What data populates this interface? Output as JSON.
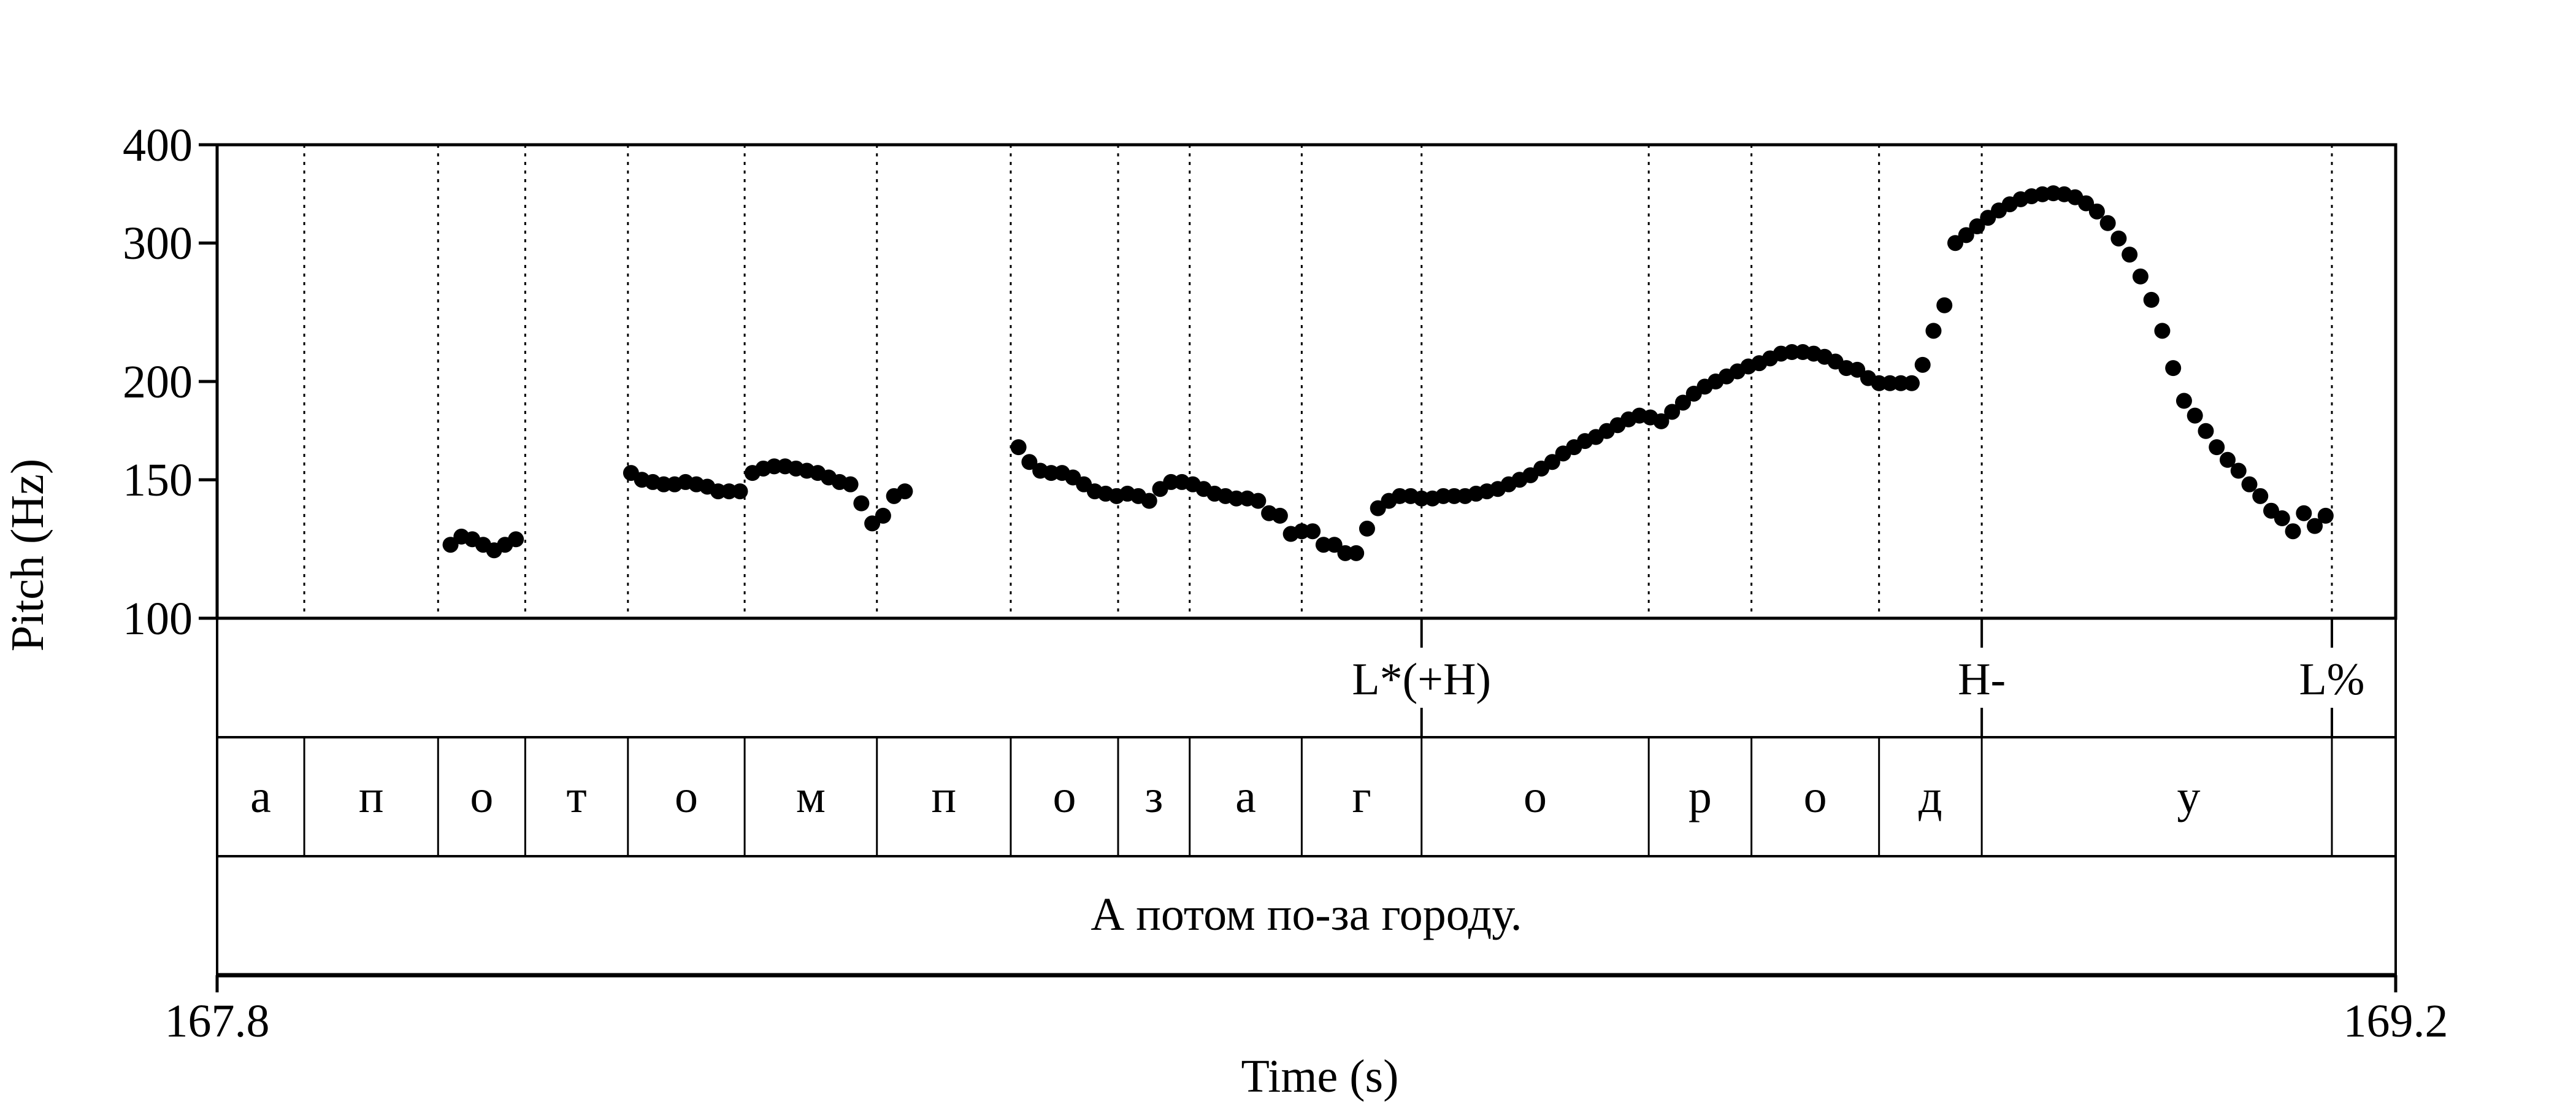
{
  "chart_data": {
    "type": "scatter",
    "title": "",
    "xlabel": "Time (s)",
    "ylabel": "Pitch (Hz)",
    "xlim": [
      167.8,
      169.2
    ],
    "ylim": [
      100,
      400
    ],
    "y_scale": "log",
    "grid": false,
    "x_tick_labels": [
      "167.8",
      "169.2"
    ],
    "y_ticks": [
      100,
      150,
      200,
      300,
      400
    ],
    "y_tick_labels": [
      "100",
      "150",
      "200",
      "300",
      "400"
    ],
    "segment_boundaries": [
      167.856,
      167.942,
      167.998,
      168.064,
      168.139,
      168.224,
      168.31,
      168.379,
      168.425,
      168.497,
      168.574,
      168.72,
      168.786,
      168.868,
      168.934,
      169.159
    ],
    "segments": [
      {
        "start": 167.8,
        "end": 167.856,
        "label": "а"
      },
      {
        "start": 167.856,
        "end": 167.942,
        "label": "п"
      },
      {
        "start": 167.942,
        "end": 167.998,
        "label": "о"
      },
      {
        "start": 167.998,
        "end": 168.064,
        "label": "т"
      },
      {
        "start": 168.064,
        "end": 168.139,
        "label": "о"
      },
      {
        "start": 168.139,
        "end": 168.224,
        "label": "м"
      },
      {
        "start": 168.224,
        "end": 168.31,
        "label": "п"
      },
      {
        "start": 168.31,
        "end": 168.379,
        "label": "о"
      },
      {
        "start": 168.379,
        "end": 168.425,
        "label": "з"
      },
      {
        "start": 168.425,
        "end": 168.497,
        "label": "а"
      },
      {
        "start": 168.497,
        "end": 168.574,
        "label": "г"
      },
      {
        "start": 168.574,
        "end": 168.72,
        "label": "о"
      },
      {
        "start": 168.72,
        "end": 168.786,
        "label": "р"
      },
      {
        "start": 168.786,
        "end": 168.868,
        "label": "о"
      },
      {
        "start": 168.868,
        "end": 168.934,
        "label": "д"
      },
      {
        "start": 168.934,
        "end": 169.2,
        "label": "у"
      }
    ],
    "tones": [
      {
        "time": 168.574,
        "label": "L*(+H)"
      },
      {
        "time": 168.934,
        "label": "H-"
      },
      {
        "time": 169.159,
        "label": "L%"
      }
    ],
    "sentence": "А потом по-за городу.",
    "series": [
      {
        "color": "#000000",
        "points": [
          [
            167.95,
            124
          ],
          [
            167.957,
            127
          ],
          [
            167.964,
            126
          ],
          [
            167.971,
            124
          ],
          [
            167.978,
            122
          ],
          [
            167.985,
            124
          ],
          [
            167.992,
            126
          ],
          [
            168.066,
            153
          ],
          [
            168.073,
            150
          ],
          [
            168.08,
            149
          ],
          [
            168.087,
            148
          ],
          [
            168.094,
            148
          ],
          [
            168.101,
            149
          ],
          [
            168.108,
            148
          ],
          [
            168.115,
            147
          ],
          [
            168.122,
            145
          ],
          [
            168.129,
            145
          ],
          [
            168.136,
            145
          ],
          [
            168.144,
            153
          ],
          [
            168.151,
            155
          ],
          [
            168.158,
            156
          ],
          [
            168.165,
            156
          ],
          [
            168.172,
            155
          ],
          [
            168.179,
            154
          ],
          [
            168.186,
            153
          ],
          [
            168.193,
            151
          ],
          [
            168.2,
            149
          ],
          [
            168.207,
            148
          ],
          [
            168.214,
            140
          ],
          [
            168.221,
            132
          ],
          [
            168.228,
            135
          ],
          [
            168.235,
            143
          ],
          [
            168.242,
            145
          ],
          [
            168.315,
            165
          ],
          [
            168.322,
            158
          ],
          [
            168.329,
            154
          ],
          [
            168.336,
            153
          ],
          [
            168.343,
            153
          ],
          [
            168.35,
            151
          ],
          [
            168.357,
            148
          ],
          [
            168.364,
            145
          ],
          [
            168.371,
            144
          ],
          [
            168.378,
            143
          ],
          [
            168.385,
            144
          ],
          [
            168.392,
            143
          ],
          [
            168.399,
            141
          ],
          [
            168.406,
            146
          ],
          [
            168.413,
            149
          ],
          [
            168.42,
            149
          ],
          [
            168.427,
            148
          ],
          [
            168.434,
            146
          ],
          [
            168.441,
            144
          ],
          [
            168.448,
            143
          ],
          [
            168.455,
            142
          ],
          [
            168.462,
            142
          ],
          [
            168.469,
            141
          ],
          [
            168.476,
            136
          ],
          [
            168.483,
            135
          ],
          [
            168.49,
            128
          ],
          [
            168.497,
            129
          ],
          [
            168.504,
            129
          ],
          [
            168.511,
            124
          ],
          [
            168.518,
            124
          ],
          [
            168.525,
            121
          ],
          [
            168.532,
            121
          ],
          [
            168.539,
            130
          ],
          [
            168.546,
            138
          ],
          [
            168.553,
            141
          ],
          [
            168.56,
            143
          ],
          [
            168.567,
            143
          ],
          [
            168.574,
            142
          ],
          [
            168.581,
            142
          ],
          [
            168.588,
            143
          ],
          [
            168.595,
            143
          ],
          [
            168.602,
            143
          ],
          [
            168.609,
            144
          ],
          [
            168.616,
            145
          ],
          [
            168.623,
            146
          ],
          [
            168.63,
            148
          ],
          [
            168.637,
            150
          ],
          [
            168.644,
            152
          ],
          [
            168.651,
            155
          ],
          [
            168.658,
            158
          ],
          [
            168.665,
            162
          ],
          [
            168.672,
            165
          ],
          [
            168.679,
            168
          ],
          [
            168.686,
            170
          ],
          [
            168.693,
            173
          ],
          [
            168.7,
            176
          ],
          [
            168.707,
            179
          ],
          [
            168.714,
            181
          ],
          [
            168.721,
            180
          ],
          [
            168.728,
            178
          ],
          [
            168.735,
            183
          ],
          [
            168.742,
            188
          ],
          [
            168.749,
            193
          ],
          [
            168.756,
            197
          ],
          [
            168.763,
            200
          ],
          [
            168.77,
            203
          ],
          [
            168.777,
            206
          ],
          [
            168.784,
            209
          ],
          [
            168.791,
            211
          ],
          [
            168.798,
            214
          ],
          [
            168.805,
            217
          ],
          [
            168.812,
            218
          ],
          [
            168.819,
            218
          ],
          [
            168.826,
            217
          ],
          [
            168.833,
            215
          ],
          [
            168.84,
            212
          ],
          [
            168.847,
            208
          ],
          [
            168.854,
            207
          ],
          [
            168.861,
            202
          ],
          [
            168.868,
            199
          ],
          [
            168.875,
            199
          ],
          [
            168.882,
            199
          ],
          [
            168.889,
            199
          ],
          [
            168.896,
            210
          ],
          [
            168.903,
            232
          ],
          [
            168.91,
            250
          ],
          [
            168.917,
            300
          ],
          [
            168.924,
            307
          ],
          [
            168.931,
            315
          ],
          [
            168.938,
            323
          ],
          [
            168.945,
            330
          ],
          [
            168.952,
            336
          ],
          [
            168.959,
            341
          ],
          [
            168.966,
            344
          ],
          [
            168.973,
            346
          ],
          [
            168.98,
            347
          ],
          [
            168.987,
            346
          ],
          [
            168.994,
            343
          ],
          [
            169.001,
            337
          ],
          [
            169.008,
            329
          ],
          [
            169.015,
            318
          ],
          [
            169.022,
            304
          ],
          [
            169.029,
            290
          ],
          [
            169.036,
            272
          ],
          [
            169.043,
            254
          ],
          [
            169.05,
            232
          ],
          [
            169.057,
            208
          ],
          [
            169.064,
            189
          ],
          [
            169.071,
            181
          ],
          [
            169.078,
            173
          ],
          [
            169.085,
            165
          ],
          [
            169.092,
            159
          ],
          [
            169.099,
            154
          ],
          [
            169.106,
            148
          ],
          [
            169.113,
            143
          ],
          [
            169.12,
            137
          ],
          [
            169.127,
            134
          ],
          [
            169.134,
            129
          ],
          [
            169.141,
            136
          ],
          [
            169.148,
            131
          ],
          [
            169.155,
            135
          ]
        ]
      }
    ]
  }
}
